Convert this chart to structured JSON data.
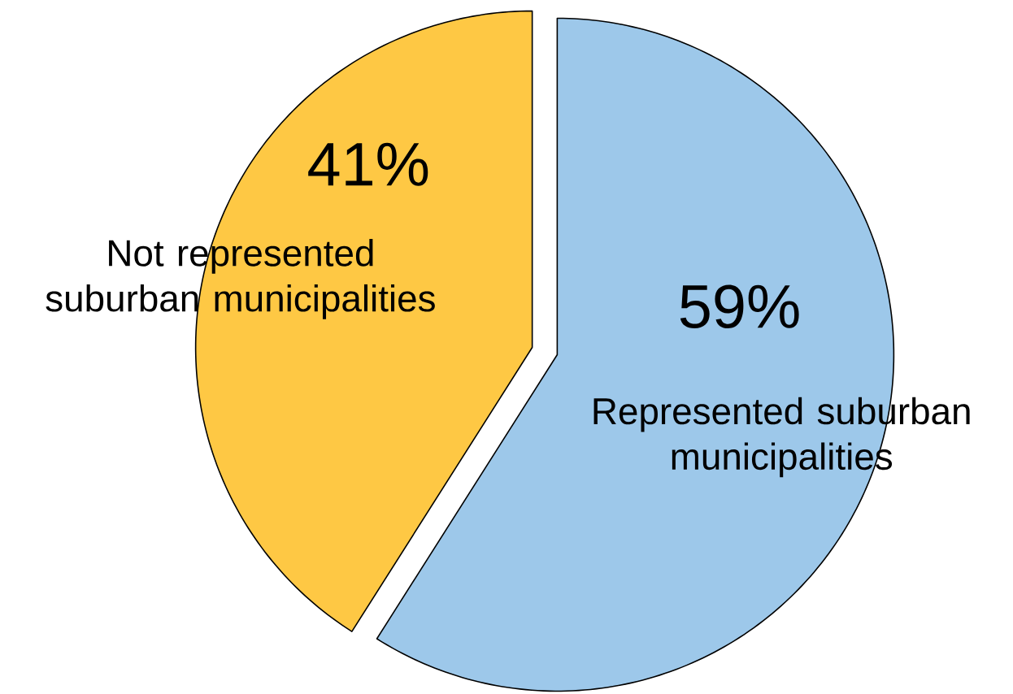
{
  "chart_data": {
    "type": "pie",
    "categories": [
      "Represented suburban municipalities",
      "Not represented suburban municipalities"
    ],
    "values": [
      59,
      41
    ],
    "colors": [
      "#9dc8ea",
      "#fec844"
    ],
    "value_labels": [
      "59%",
      "41%"
    ]
  }
}
